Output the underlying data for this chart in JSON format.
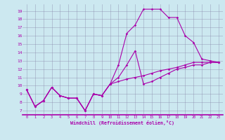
{
  "xlabel": "Windchill (Refroidissement éolien,°C)",
  "bg_color": "#cce8f0",
  "grid_color": "#8888aa",
  "line_color": "#aa00aa",
  "xlim": [
    -0.5,
    23.5
  ],
  "ylim": [
    6.5,
    19.8
  ],
  "yticks": [
    7,
    8,
    9,
    10,
    11,
    12,
    13,
    14,
    15,
    16,
    17,
    18,
    19
  ],
  "xticks": [
    0,
    1,
    2,
    3,
    4,
    5,
    6,
    7,
    8,
    9,
    10,
    11,
    12,
    13,
    14,
    15,
    16,
    17,
    18,
    19,
    20,
    21,
    22,
    23
  ],
  "series": [
    [
      9.5,
      7.5,
      8.2,
      9.8,
      8.8,
      8.5,
      8.5,
      7.0,
      9.0,
      8.8,
      10.2,
      12.5,
      16.3,
      17.3,
      19.2,
      19.2,
      19.2,
      18.2,
      18.2,
      16.0,
      15.2,
      13.2,
      13.0,
      12.8
    ],
    [
      9.5,
      7.5,
      8.2,
      9.8,
      8.8,
      8.5,
      8.5,
      7.0,
      9.0,
      8.8,
      10.2,
      11.0,
      12.5,
      14.2,
      10.2,
      10.5,
      11.0,
      11.5,
      12.0,
      12.2,
      12.5,
      12.5,
      12.8,
      12.8
    ],
    [
      9.5,
      7.5,
      8.2,
      9.8,
      8.8,
      8.5,
      8.5,
      7.0,
      9.0,
      8.8,
      10.2,
      10.5,
      10.8,
      11.0,
      11.2,
      11.5,
      11.8,
      12.0,
      12.2,
      12.5,
      12.8,
      12.8,
      12.8,
      12.8
    ]
  ]
}
